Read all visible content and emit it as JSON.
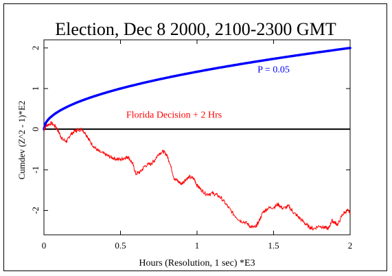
{
  "chart_data": {
    "type": "line",
    "title": "Election, Dec 8 2000, 2100-2300 GMT",
    "xlabel": "Hours (Resolution, 1 sec)   *E3",
    "ylabel": "Cumdev (Z^2 - 1)*E2",
    "xlim": [
      0,
      2
    ],
    "ylim": [
      -2.6,
      2.2
    ],
    "xticks": [
      0,
      0.5,
      1,
      1.5,
      2
    ],
    "xtick_labels": [
      "0",
      "0.5",
      "1",
      "1.5",
      "2"
    ],
    "yticks": [
      -2,
      -1,
      0,
      1,
      2
    ],
    "ytick_labels": [
      "-2",
      "-1",
      "0",
      "1",
      "2"
    ],
    "grid": false,
    "legend": "none",
    "series": [
      {
        "name": "P = 0.05",
        "color": "#0000ff",
        "kind": "envelope",
        "coef": 1.414,
        "note_shape": "y = coef * sqrt(x)"
      },
      {
        "name": "Florida Decision + 2 Hrs",
        "color": "#ff0000",
        "x": [
          0,
          0.02,
          0.05,
          0.08,
          0.1,
          0.12,
          0.15,
          0.17,
          0.2,
          0.22,
          0.25,
          0.28,
          0.3,
          0.33,
          0.36,
          0.4,
          0.43,
          0.46,
          0.5,
          0.53,
          0.55,
          0.58,
          0.6,
          0.63,
          0.66,
          0.7,
          0.72,
          0.75,
          0.78,
          0.8,
          0.82,
          0.85,
          0.88,
          0.9,
          0.92,
          0.95,
          0.98,
          1.0,
          1.03,
          1.06,
          1.1,
          1.13,
          1.16,
          1.2,
          1.24,
          1.28,
          1.32,
          1.35,
          1.38,
          1.4,
          1.43,
          1.46,
          1.5,
          1.53,
          1.56,
          1.6,
          1.63,
          1.66,
          1.7,
          1.73,
          1.76,
          1.8,
          1.83,
          1.86,
          1.88,
          1.9,
          1.92,
          1.95,
          1.98,
          2.0
        ],
        "values": [
          0,
          0.1,
          0.15,
          0.05,
          -0.1,
          -0.25,
          -0.3,
          -0.15,
          -0.05,
          -0.02,
          0.0,
          -0.15,
          -0.3,
          -0.45,
          -0.55,
          -0.62,
          -0.68,
          -0.72,
          -0.75,
          -0.7,
          -0.68,
          -0.85,
          -1.1,
          -1.05,
          -0.9,
          -0.85,
          -0.78,
          -0.6,
          -0.55,
          -0.62,
          -0.8,
          -1.2,
          -1.3,
          -1.35,
          -1.25,
          -1.18,
          -1.22,
          -1.38,
          -1.5,
          -1.6,
          -1.58,
          -1.62,
          -1.7,
          -1.9,
          -2.1,
          -2.25,
          -2.3,
          -2.4,
          -2.42,
          -2.3,
          -2.05,
          -1.95,
          -1.92,
          -1.85,
          -1.95,
          -1.9,
          -2.05,
          -2.15,
          -2.3,
          -2.4,
          -2.45,
          -2.38,
          -2.42,
          -2.45,
          -2.25,
          -2.3,
          -2.35,
          -2.1,
          -2.0,
          -2.05
        ]
      }
    ],
    "annotations": [
      {
        "text": "P = 0.05",
        "color": "#0000ff",
        "x": 1.5,
        "y": 1.4
      },
      {
        "text": "Florida Decision + 2 Hrs",
        "color": "#ff0000",
        "x": 0.85,
        "y": 0.28
      }
    ]
  }
}
